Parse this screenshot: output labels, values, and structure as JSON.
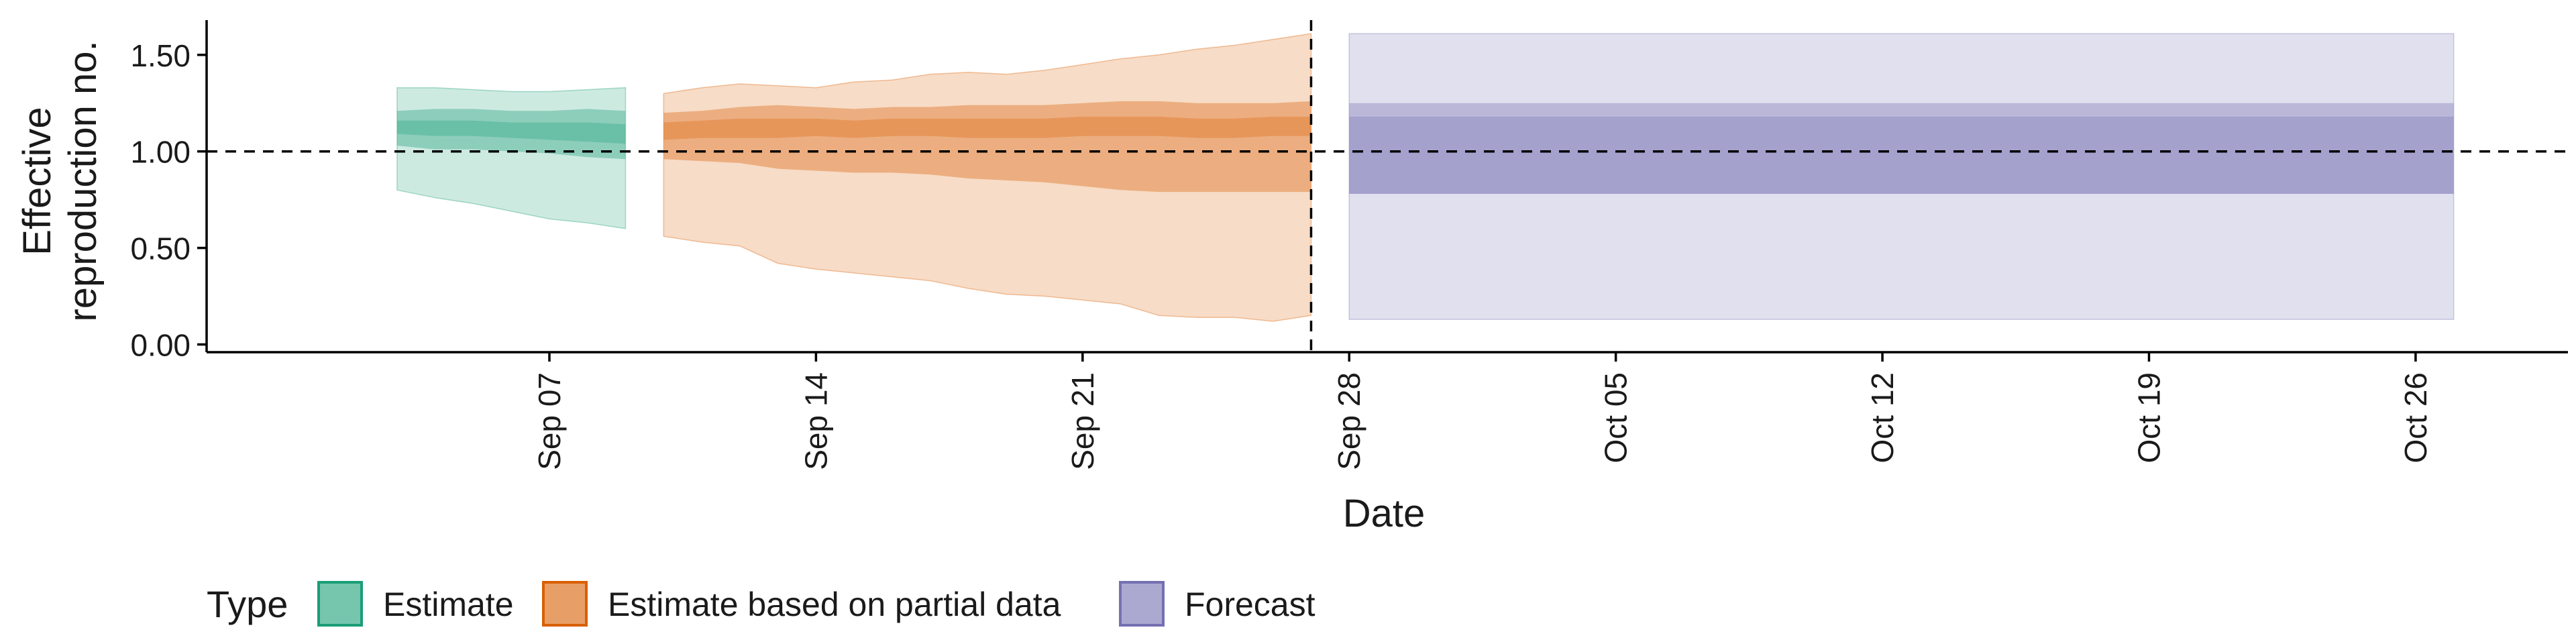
{
  "chart_data": {
    "type": "area",
    "title": "",
    "xlabel": "Date",
    "ylabel_lines": [
      "Effective",
      "reproduction no."
    ],
    "ylim": [
      -0.04,
      1.68
    ],
    "xlim": [
      "2020-08-29",
      "2020-10-30"
    ],
    "y_ticks": [
      {
        "value": 0.0,
        "label": "0.00"
      },
      {
        "value": 0.5,
        "label": "0.50"
      },
      {
        "value": 1.0,
        "label": "1.00"
      },
      {
        "value": 1.5,
        "label": "1.50"
      }
    ],
    "x_ticks": [
      {
        "date": "2020-09-07",
        "label": "Sep 07"
      },
      {
        "date": "2020-09-14",
        "label": "Sep 14"
      },
      {
        "date": "2020-09-21",
        "label": "Sep 21"
      },
      {
        "date": "2020-09-28",
        "label": "Sep 28"
      },
      {
        "date": "2020-10-05",
        "label": "Oct 05"
      },
      {
        "date": "2020-10-12",
        "label": "Oct 12"
      },
      {
        "date": "2020-10-19",
        "label": "Oct 19"
      },
      {
        "date": "2020-10-26",
        "label": "Oct 26"
      }
    ],
    "reference_line_y": 1.0,
    "forecast_start_date": "2020-09-27",
    "grid": false,
    "legend_position": "bottom-left",
    "legend_title": "Type",
    "series": [
      {
        "name": "Estimate",
        "color": "#1b9e77",
        "dates": [
          "2020-09-03",
          "2020-09-04",
          "2020-09-05",
          "2020-09-06",
          "2020-09-07",
          "2020-09-08",
          "2020-09-09"
        ],
        "lower90": [
          0.8,
          0.76,
          0.73,
          0.69,
          0.65,
          0.63,
          0.6
        ],
        "upper90": [
          1.33,
          1.33,
          1.32,
          1.31,
          1.31,
          1.32,
          1.33
        ],
        "lower50": [
          1.03,
          1.01,
          1.01,
          1.0,
          0.99,
          0.97,
          0.96
        ],
        "upper50": [
          1.21,
          1.22,
          1.22,
          1.21,
          1.21,
          1.22,
          1.21
        ],
        "lower20": [
          1.09,
          1.08,
          1.08,
          1.07,
          1.06,
          1.05,
          1.04
        ],
        "upper20": [
          1.16,
          1.16,
          1.16,
          1.15,
          1.15,
          1.15,
          1.14
        ]
      },
      {
        "name": "Estimate based on partial data",
        "color": "#d95f02",
        "dates": [
          "2020-09-10",
          "2020-09-11",
          "2020-09-12",
          "2020-09-13",
          "2020-09-14",
          "2020-09-15",
          "2020-09-16",
          "2020-09-17",
          "2020-09-18",
          "2020-09-19",
          "2020-09-20",
          "2020-09-21",
          "2020-09-22",
          "2020-09-23",
          "2020-09-24",
          "2020-09-25",
          "2020-09-26",
          "2020-09-27"
        ],
        "lower90": [
          0.56,
          0.53,
          0.51,
          0.42,
          0.39,
          0.37,
          0.35,
          0.33,
          0.29,
          0.26,
          0.25,
          0.23,
          0.21,
          0.15,
          0.14,
          0.14,
          0.12,
          0.15
        ],
        "upper90": [
          1.3,
          1.33,
          1.35,
          1.34,
          1.33,
          1.36,
          1.37,
          1.4,
          1.41,
          1.4,
          1.42,
          1.45,
          1.48,
          1.5,
          1.53,
          1.55,
          1.58,
          1.61
        ],
        "lower50": [
          0.96,
          0.95,
          0.94,
          0.91,
          0.9,
          0.89,
          0.89,
          0.88,
          0.86,
          0.85,
          0.84,
          0.82,
          0.8,
          0.79,
          0.79,
          0.79,
          0.79,
          0.79
        ],
        "upper50": [
          1.2,
          1.21,
          1.23,
          1.24,
          1.23,
          1.22,
          1.23,
          1.23,
          1.24,
          1.24,
          1.24,
          1.25,
          1.26,
          1.26,
          1.25,
          1.25,
          1.25,
          1.26
        ],
        "lower20": [
          1.06,
          1.07,
          1.07,
          1.07,
          1.08,
          1.07,
          1.08,
          1.08,
          1.07,
          1.07,
          1.07,
          1.08,
          1.08,
          1.08,
          1.07,
          1.07,
          1.08,
          1.08
        ],
        "upper20": [
          1.15,
          1.16,
          1.17,
          1.17,
          1.17,
          1.16,
          1.17,
          1.17,
          1.17,
          1.17,
          1.17,
          1.18,
          1.18,
          1.18,
          1.17,
          1.17,
          1.18,
          1.18
        ]
      },
      {
        "name": "Forecast",
        "color": "#7570b3",
        "dates": [
          "2020-09-28",
          "2020-10-27"
        ],
        "lower90": [
          0.13,
          0.13
        ],
        "upper90": [
          1.61,
          1.61
        ],
        "lower50": [
          0.78,
          0.78
        ],
        "upper50": [
          1.25,
          1.25
        ],
        "lower20": [
          0.78,
          0.78
        ],
        "upper20": [
          1.18,
          1.18
        ]
      }
    ]
  }
}
